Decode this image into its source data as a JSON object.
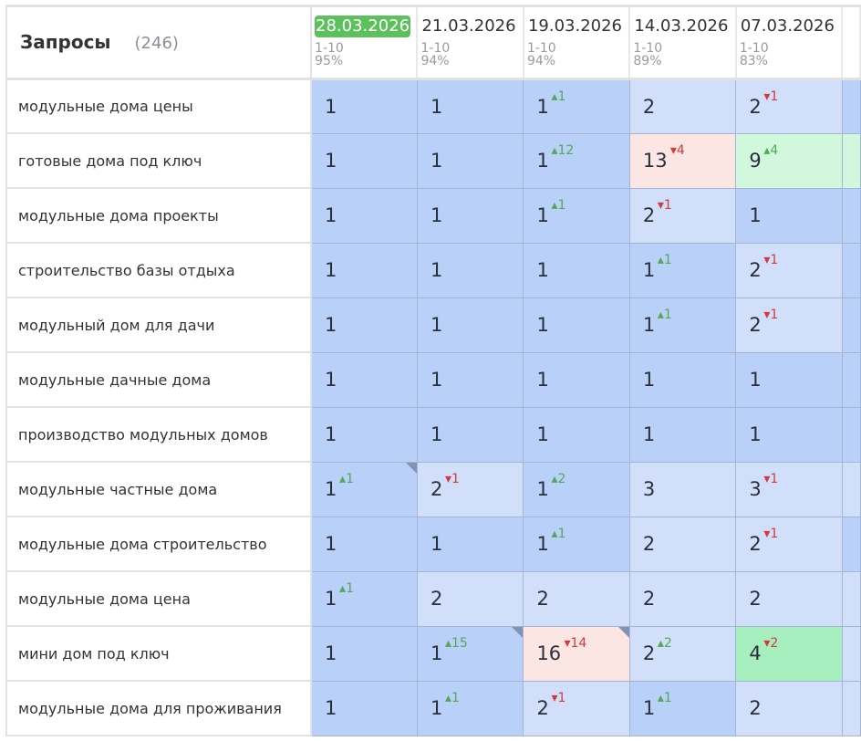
{
  "header": {
    "title": "Запросы",
    "count": "(246)"
  },
  "columns": [
    {
      "date": "28.03.2026",
      "range": "1-10",
      "percent": "95%",
      "current": true
    },
    {
      "date": "21.03.2026",
      "range": "1-10",
      "percent": "94%"
    },
    {
      "date": "19.03.2026",
      "range": "1-10",
      "percent": "94%"
    },
    {
      "date": "14.03.2026",
      "range": "1-10",
      "percent": "89%"
    },
    {
      "date": "07.03.2026",
      "range": "1-10",
      "percent": "83%"
    }
  ],
  "colors": {
    "top1": "#b9d0f8",
    "top3": "#d1dffb",
    "drop": "#fce6e3",
    "rise": "#d1f8dc",
    "top5": "#a8efbf",
    "current_date": "#5cc05c",
    "up": "#55a855",
    "down": "#d33b3b"
  },
  "rows": [
    {
      "query": "модульные дома цены",
      "cells": [
        {
          "pos": "1"
        },
        {
          "pos": "1"
        },
        {
          "pos": "1",
          "up": "1"
        },
        {
          "pos": "2"
        },
        {
          "pos": "2",
          "down": "1"
        }
      ]
    },
    {
      "query": "готовые дома под ключ",
      "cells": [
        {
          "pos": "1"
        },
        {
          "pos": "1"
        },
        {
          "pos": "1",
          "up": "12"
        },
        {
          "pos": "13",
          "down": "4",
          "bg": "pink"
        },
        {
          "pos": "9",
          "up": "4",
          "bg": "lgreen"
        }
      ]
    },
    {
      "query": "модульные дома проекты",
      "cells": [
        {
          "pos": "1"
        },
        {
          "pos": "1"
        },
        {
          "pos": "1",
          "up": "1"
        },
        {
          "pos": "2",
          "down": "1"
        },
        {
          "pos": "1"
        }
      ]
    },
    {
      "query": "строительство базы отдыха",
      "cells": [
        {
          "pos": "1"
        },
        {
          "pos": "1"
        },
        {
          "pos": "1"
        },
        {
          "pos": "1",
          "up": "1"
        },
        {
          "pos": "2",
          "down": "1"
        }
      ]
    },
    {
      "query": "модульный дом для дачи",
      "cells": [
        {
          "pos": "1"
        },
        {
          "pos": "1"
        },
        {
          "pos": "1"
        },
        {
          "pos": "1",
          "up": "1"
        },
        {
          "pos": "2",
          "down": "1"
        }
      ]
    },
    {
      "query": "модульные дачные дома",
      "cells": [
        {
          "pos": "1"
        },
        {
          "pos": "1"
        },
        {
          "pos": "1"
        },
        {
          "pos": "1"
        },
        {
          "pos": "1"
        }
      ]
    },
    {
      "query": "производство модульных домов",
      "cells": [
        {
          "pos": "1"
        },
        {
          "pos": "1"
        },
        {
          "pos": "1"
        },
        {
          "pos": "1"
        },
        {
          "pos": "1"
        }
      ]
    },
    {
      "query": "модульные частные дома",
      "cells": [
        {
          "pos": "1",
          "up": "1",
          "note": true
        },
        {
          "pos": "2",
          "down": "1"
        },
        {
          "pos": "1",
          "up": "2"
        },
        {
          "pos": "3"
        },
        {
          "pos": "3",
          "down": "1"
        }
      ]
    },
    {
      "query": "модульные дома строительство",
      "cells": [
        {
          "pos": "1"
        },
        {
          "pos": "1"
        },
        {
          "pos": "1",
          "up": "1"
        },
        {
          "pos": "2"
        },
        {
          "pos": "2",
          "down": "1"
        }
      ]
    },
    {
      "query": "модульные дома цена",
      "cells": [
        {
          "pos": "1",
          "up": "1"
        },
        {
          "pos": "2"
        },
        {
          "pos": "2"
        },
        {
          "pos": "2"
        },
        {
          "pos": "2"
        }
      ]
    },
    {
      "query": "мини дом под ключ",
      "cells": [
        {
          "pos": "1"
        },
        {
          "pos": "1",
          "up": "15",
          "note": true
        },
        {
          "pos": "16",
          "down": "14",
          "bg": "pink",
          "note": true
        },
        {
          "pos": "2",
          "up": "2"
        },
        {
          "pos": "4",
          "down": "2",
          "bg": "green"
        }
      ]
    },
    {
      "query": "модульные дома для проживания",
      "cells": [
        {
          "pos": "1"
        },
        {
          "pos": "1",
          "up": "1"
        },
        {
          "pos": "2",
          "down": "1"
        },
        {
          "pos": "1",
          "up": "1"
        },
        {
          "pos": "2"
        }
      ]
    }
  ]
}
